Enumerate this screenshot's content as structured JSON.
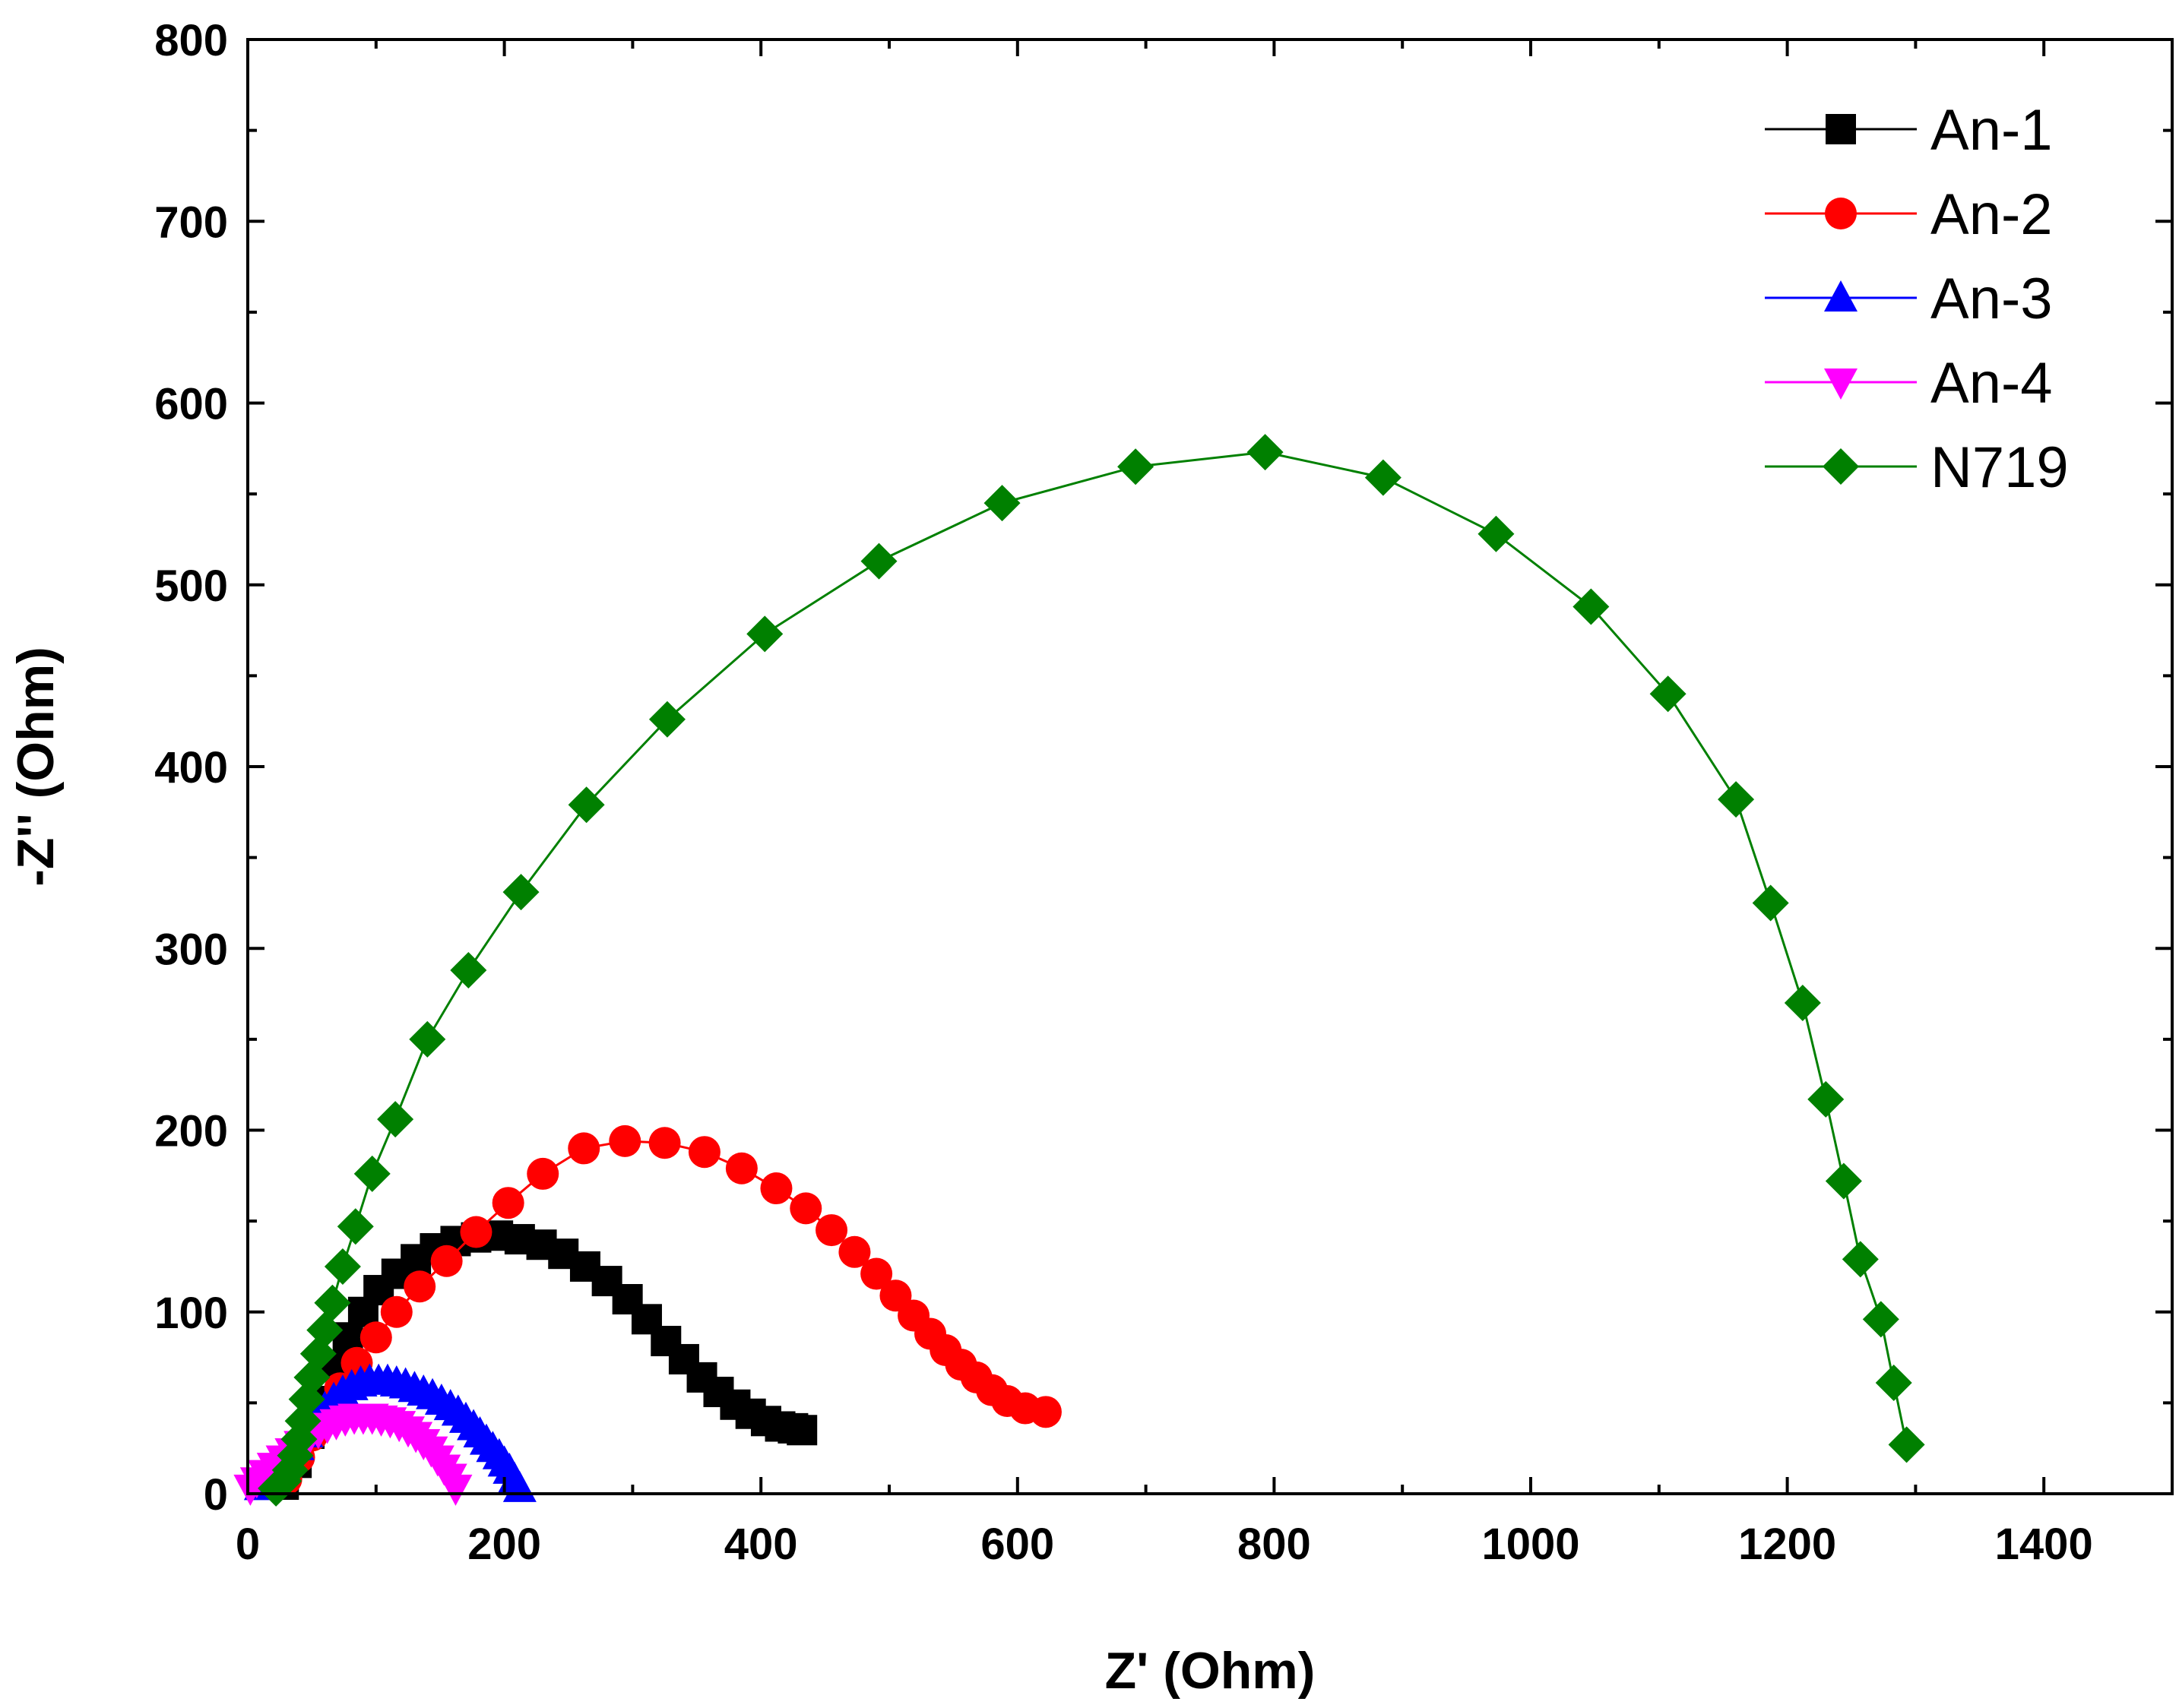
{
  "chart_data": {
    "type": "scatter",
    "title": "",
    "xlabel": "Z' (Ohm)",
    "ylabel": "-Z'' (Ohm)",
    "xlim": [
      0,
      1500
    ],
    "ylim": [
      0,
      800
    ],
    "xticks": [
      0,
      200,
      400,
      600,
      800,
      1000,
      1200,
      1400
    ],
    "yticks": [
      0,
      100,
      200,
      300,
      400,
      500,
      600,
      700,
      800
    ],
    "legend_position": "top-right",
    "grid": false,
    "series": [
      {
        "name": "An-1",
        "color": "#000000",
        "marker": "square",
        "x": [
          28,
          38,
          48,
          58,
          68,
          78,
          90,
          102,
          116,
          131,
          146,
          162,
          178,
          195,
          212,
          229,
          246,
          263,
          280,
          296,
          311,
          326,
          340,
          354,
          367,
          380,
          392,
          404,
          415,
          425,
          432
        ],
        "y": [
          5,
          17,
          33,
          51,
          70,
          86,
          100,
          112,
          121,
          129,
          135,
          139,
          141,
          142,
          140,
          137,
          132,
          125,
          117,
          107,
          96,
          84,
          74,
          64,
          56,
          49,
          44,
          40,
          37,
          36,
          35
        ]
      },
      {
        "name": "An-2",
        "color": "#ff0000",
        "marker": "circle",
        "x": [
          30,
          40,
          50,
          60,
          72,
          85,
          100,
          116,
          134,
          155,
          178,
          203,
          230,
          262,
          294,
          325,
          356,
          385,
          412,
          435,
          455,
          473,
          490,
          505,
          519,
          532,
          544,
          556,
          568,
          580,
          592,
          606,
          622
        ],
        "y": [
          8,
          20,
          32,
          45,
          58,
          72,
          86,
          100,
          114,
          128,
          144,
          160,
          176,
          190,
          194,
          193,
          188,
          179,
          168,
          157,
          145,
          133,
          121,
          109,
          98,
          88,
          79,
          71,
          64,
          57,
          51,
          47,
          45
        ]
      },
      {
        "name": "An-3",
        "color": "#0000ff",
        "marker": "triangle-up",
        "x": [
          10,
          18,
          25,
          32,
          39,
          46,
          53,
          60,
          67,
          74,
          81,
          88,
          95,
          102,
          109,
          116,
          123,
          130,
          137,
          144,
          151,
          158,
          164,
          170,
          176,
          181,
          186,
          191,
          196,
          200,
          204,
          208,
          212
        ],
        "y": [
          4,
          8,
          13,
          19,
          26,
          33,
          40,
          47,
          52,
          56,
          59,
          61,
          62,
          62,
          62,
          61,
          60,
          58,
          56,
          54,
          51,
          48,
          45,
          41,
          37,
          33,
          29,
          25,
          21,
          17,
          13,
          8,
          3
        ]
      },
      {
        "name": "An-4",
        "color": "#ff00ff",
        "marker": "triangle-down",
        "x": [
          2,
          7,
          13,
          20,
          27,
          34,
          41,
          48,
          55,
          62,
          69,
          76,
          83,
          90,
          97,
          104,
          111,
          118,
          125,
          131,
          137,
          143,
          148,
          153,
          158,
          162
        ],
        "y": [
          3,
          7,
          11,
          15,
          19,
          23,
          27,
          31,
          34,
          37,
          39,
          41,
          42,
          42,
          42,
          41,
          40,
          38,
          35,
          32,
          28,
          24,
          19,
          14,
          9,
          3
        ]
      },
      {
        "name": "N719",
        "color": "#008000",
        "marker": "diamond",
        "x": [
          22,
          28,
          33,
          37,
          40,
          43,
          46,
          50,
          55,
          60,
          66,
          74,
          84,
          97,
          115,
          140,
          172,
          213,
          264,
          327,
          403,
          492,
          588,
          692,
          793,
          885,
          973,
          1047,
          1107,
          1160,
          1187,
          1212,
          1230,
          1244,
          1257,
          1273,
          1283,
          1293
        ],
        "y": [
          3,
          7,
          13,
          21,
          30,
          40,
          52,
          64,
          77,
          90,
          105,
          125,
          147,
          176,
          206,
          250,
          288,
          331,
          379,
          426,
          473,
          513,
          545,
          565,
          573,
          559,
          528,
          488,
          440,
          382,
          325,
          270,
          217,
          172,
          129,
          96,
          61,
          27
        ]
      }
    ]
  }
}
